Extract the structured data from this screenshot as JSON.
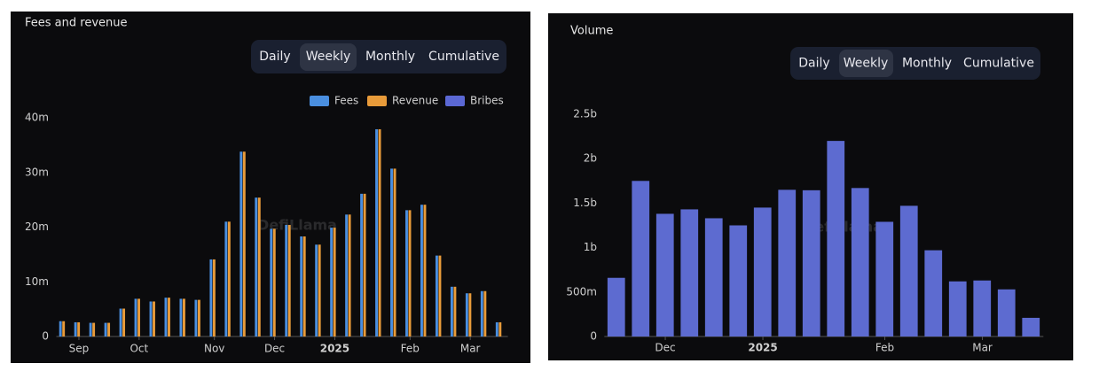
{
  "chart_data": [
    {
      "type": "bar",
      "title": "Fees and revenue",
      "options": [
        "Daily",
        "Weekly",
        "Monthly",
        "Cumulative"
      ],
      "watermark": "DefiLlama",
      "categories": [
        null,
        "Sep",
        null,
        null,
        null,
        "Oct",
        null,
        null,
        null,
        null,
        "Nov",
        null,
        null,
        null,
        "Dec",
        null,
        null,
        null,
        "2025",
        null,
        null,
        null,
        null,
        "Feb",
        null,
        null,
        null,
        "Mar",
        null,
        null
      ],
      "series": [
        {
          "name": "Fees",
          "color": "#4a8fe0",
          "values": [
            2.8,
            2.6,
            2.5,
            2.5,
            5.1,
            6.9,
            6.4,
            7.1,
            6.9,
            6.7,
            14.1,
            21.0,
            33.8,
            25.4,
            19.7,
            20.4,
            18.3,
            16.8,
            19.9,
            22.3,
            26.1,
            37.9,
            30.7,
            23.1,
            24.1,
            14.8,
            9.1,
            7.9,
            8.3,
            2.6
          ]
        },
        {
          "name": "Revenue",
          "color": "#e89b3a",
          "values": [
            2.8,
            2.6,
            2.5,
            2.5,
            5.1,
            6.9,
            6.4,
            7.1,
            6.9,
            6.7,
            14.1,
            21.0,
            33.8,
            25.4,
            19.7,
            20.4,
            18.3,
            16.8,
            19.9,
            22.3,
            26.1,
            37.9,
            30.7,
            23.1,
            24.1,
            14.8,
            9.1,
            7.9,
            8.3,
            2.6
          ]
        },
        {
          "name": "Bribes",
          "color": "#5b68d4",
          "values": [
            0,
            0,
            0,
            0,
            0,
            0,
            0,
            0,
            0,
            0,
            0,
            0,
            0,
            0,
            0,
            0,
            0,
            0,
            0,
            0,
            0,
            0,
            0,
            0,
            0,
            0,
            0,
            0,
            0,
            0
          ]
        }
      ],
      "ylim": [
        0,
        40
      ],
      "yticks": [
        0,
        {
          "value": 10,
          "label": "10m"
        },
        {
          "value": 20,
          "label": "20m"
        },
        {
          "value": 30,
          "label": "30m"
        },
        {
          "value": 40,
          "label": "40m"
        }
      ],
      "grid": false,
      "legend": "top-right"
    },
    {
      "type": "bar",
      "title": "Volume",
      "options": [
        "Daily",
        "Weekly",
        "Monthly",
        "Cumulative"
      ],
      "watermark": "DefiLlama",
      "categories": [
        null,
        null,
        "Dec",
        null,
        null,
        null,
        "2025",
        null,
        null,
        null,
        null,
        "Feb",
        null,
        null,
        null,
        "Mar",
        null,
        null
      ],
      "values": [
        660,
        1750,
        1380,
        1430,
        1330,
        1250,
        1450,
        1650,
        1645,
        2200,
        1670,
        1290,
        1470,
        970,
        620,
        630,
        530,
        210
      ],
      "color": "#5d6bd0",
      "ylim": [
        0,
        2500
      ],
      "yticks": [
        0,
        {
          "value": 500,
          "label": "500m"
        },
        {
          "value": 1000,
          "label": "1b"
        },
        {
          "value": 1500,
          "label": "1.5b"
        },
        {
          "value": 2000,
          "label": "2b"
        },
        {
          "value": 2500,
          "label": "2.5b"
        }
      ],
      "grid": false
    }
  ]
}
